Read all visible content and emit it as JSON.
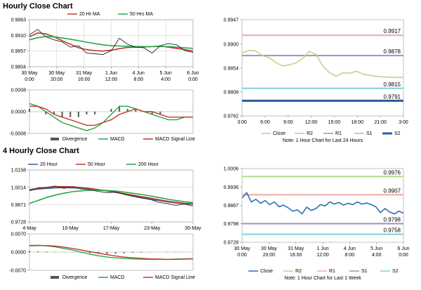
{
  "sections": {
    "hourly_title": "Hourly Close Chart",
    "four_hourly_title": "4 Hourly Close Chart"
  },
  "chart_data": [
    {
      "id": "hourly-price",
      "type": "line",
      "title": "",
      "legend": [
        "20 Hr MA",
        "50 Hrs MA"
      ],
      "legend_placement": "top",
      "x_tick_labels": [
        "30 May\n0:00",
        "30 May\n20:00",
        "31 May\n16:00",
        "1 Jun\n12:00",
        "4 Jun\n8:00",
        "5 Jun\n4:00",
        "6 Jun\n0:00"
      ],
      "y_ticks": [
        "0.9963",
        "0.9910",
        "0.9857",
        "0.9804"
      ],
      "ylim": [
        0.9804,
        0.9963
      ],
      "grid": true,
      "series": [
        {
          "name": "20 Hr MA",
          "color": "#c0392b",
          "values": [
            0.9905,
            0.9918,
            0.9915,
            0.9905,
            0.9892,
            0.988,
            0.9868,
            0.9862,
            0.9858,
            0.9857,
            0.986,
            0.9865,
            0.9869,
            0.987,
            0.9871,
            0.9872,
            0.9874,
            0.987,
            0.9866,
            0.9862,
            0.9857
          ]
        },
        {
          "name": "50 Hrs MA",
          "color": "#22a84a",
          "values": [
            0.9895,
            0.9902,
            0.9906,
            0.9905,
            0.9901,
            0.9897,
            0.9892,
            0.9887,
            0.9882,
            0.9878,
            0.9875,
            0.9874,
            0.9873,
            0.9872,
            0.9872,
            0.9872,
            0.9872,
            0.9872,
            0.987,
            0.9868,
            0.9866
          ]
        },
        {
          "name": "Close",
          "color": "#222222",
          "values": [
            0.9912,
            0.993,
            0.9905,
            0.9895,
            0.9888,
            0.987,
            0.9875,
            0.985,
            0.9848,
            0.9845,
            0.9858,
            0.99,
            0.988,
            0.987,
            0.9868,
            0.985,
            0.9875,
            0.9882,
            0.9878,
            0.9858,
            0.9853
          ]
        }
      ]
    },
    {
      "id": "hourly-macd",
      "type": "line",
      "title": "",
      "legend": [
        "Divergence",
        "MACD",
        "MACD Signal Line"
      ],
      "legend_placement": "bottom",
      "y_ticks": [
        "0.0008",
        "0.0000",
        "-0.0008"
      ],
      "ylim": [
        -0.0008,
        0.0008
      ],
      "series": [
        {
          "name": "Divergence",
          "color": "#555555",
          "values": [
            0.0001,
            0.0,
            -0.0001,
            -0.0001,
            -0.0002,
            -0.0002,
            -0.0002,
            -0.0001,
            -0.0001,
            0.0,
            0.0001,
            0.0002,
            0.0001,
            0.0001,
            0.0,
            -0.0001,
            -0.0001,
            0.0,
            0.0,
            0.0,
            0.0
          ]
        },
        {
          "name": "MACD",
          "color": "#22a84a",
          "values": [
            0.0003,
            0.0002,
            0.0,
            -0.0002,
            -0.0004,
            -0.0005,
            -0.0006,
            -0.0007,
            -0.0006,
            -0.0004,
            -0.0001,
            0.0002,
            0.0002,
            0.0001,
            0.0,
            -0.0001,
            -0.0002,
            -0.0003,
            -0.0003,
            -0.0002,
            -0.0002
          ]
        },
        {
          "name": "MACD Signal Line",
          "color": "#c0392b",
          "values": [
            0.0002,
            0.0002,
            0.0001,
            -0.0001,
            -0.0002,
            -0.0003,
            -0.0004,
            -0.0005,
            -0.0005,
            -0.0004,
            -0.0003,
            -0.0001,
            0.0,
            0.0001,
            0.0,
            0.0,
            -0.0001,
            -0.0002,
            -0.0002,
            -0.0002,
            -0.0002
          ]
        }
      ]
    },
    {
      "id": "hourly-levels",
      "type": "line",
      "title": "",
      "legend": [
        "Close",
        "R2",
        "R1",
        "S1",
        "S2"
      ],
      "legend_placement": "bottom",
      "note": "Note: 1 Hour Chart for Last 24 Hours",
      "x_tick_labels": [
        "3:00",
        "6:00",
        "9:00",
        "12:00",
        "15:00",
        "18:00",
        "21:00",
        "3:00"
      ],
      "y_ticks": [
        "0.9947",
        "0.9900",
        "0.9854",
        "0.9808",
        "0.9762"
      ],
      "ylim": [
        0.9762,
        0.9947
      ],
      "levels": [
        {
          "name": "R2",
          "value": 0.9917,
          "label": "0.9917",
          "color": "#f0a8a8"
        },
        {
          "name": "R1",
          "value": 0.9878,
          "label": "0.9878",
          "color": "#a58cc4"
        },
        {
          "name": "S1",
          "value": 0.9815,
          "label": "0.9815",
          "color": "#7fd0d8"
        },
        {
          "name": "S2",
          "value": 0.9791,
          "label": "0.9791",
          "color": "#2e5e9e"
        }
      ],
      "series": [
        {
          "name": "Close",
          "color": "#b5d98b",
          "values": [
            0.9883,
            0.9888,
            0.9887,
            0.9878,
            0.9874,
            0.9865,
            0.9858,
            0.986,
            0.9864,
            0.9872,
            0.9886,
            0.988,
            0.9858,
            0.9845,
            0.9838,
            0.9845,
            0.9844,
            0.9848,
            0.9842,
            0.984,
            0.9838,
            0.9837,
            0.9836,
            0.9836,
            0.9836
          ]
        }
      ]
    },
    {
      "id": "four-hourly-price",
      "type": "line",
      "title": "",
      "legend": [
        "20 Hour",
        "50 Hour",
        "200 Hour"
      ],
      "legend_placement": "top",
      "x_tick_labels": [
        "4-May",
        "10-May",
        "17-May",
        "23-May",
        "30-May"
      ],
      "y_ticks": [
        "1.0158",
        "1.0014",
        "0.9871",
        "0.9728"
      ],
      "ylim": [
        0.9728,
        1.0158
      ],
      "series": [
        {
          "name": "20 Hour",
          "color": "#2e5e9e",
          "values": [
            0.999,
            1.0,
            1.0005,
            1.001,
            1.0012,
            1.001,
            1.0008,
            1.0003,
            0.9995,
            0.9985,
            0.9972,
            0.996,
            0.9945,
            0.993,
            0.9915,
            0.9905,
            0.9895,
            0.9885,
            0.9878,
            0.9875
          ]
        },
        {
          "name": "50 Hour",
          "color": "#c0392b",
          "values": [
            0.9995,
            1.0005,
            1.0012,
            1.0018,
            1.002,
            1.0018,
            1.0012,
            1.0005,
            0.9995,
            0.9985,
            0.9975,
            0.9962,
            0.995,
            0.9937,
            0.9925,
            0.9912,
            0.99,
            0.989,
            0.9882,
            0.9878
          ]
        },
        {
          "name": "200 Hour",
          "color": "#22a84a",
          "values": [
            0.988,
            0.9905,
            0.993,
            0.995,
            0.9965,
            0.9978,
            0.9985,
            0.999,
            0.999,
            0.9988,
            0.9983,
            0.9975,
            0.9965,
            0.9955,
            0.9943,
            0.993,
            0.9917,
            0.9905,
            0.9895,
            0.9887
          ]
        },
        {
          "name": "Close",
          "color": "#222222",
          "values": [
            0.9985,
            1.001,
            1.0014,
            1.0025,
            1.0005,
            1.0018,
            1.0,
            0.9995,
            0.998,
            0.997,
            0.9975,
            0.9955,
            0.994,
            0.9925,
            0.9915,
            0.989,
            0.988,
            0.9865,
            0.9875,
            0.986
          ]
        }
      ]
    },
    {
      "id": "four-hourly-macd",
      "type": "line",
      "title": "",
      "legend": [
        "Divergence",
        "MACD",
        "MACD Signal Line"
      ],
      "legend_placement": "bottom",
      "y_ticks": [
        "0.0070",
        "0.0000",
        "-0.0070"
      ],
      "ylim": [
        -0.007,
        0.007
      ],
      "series": [
        {
          "name": "Divergence",
          "color": "#555555",
          "values": [
            0.0004,
            0.0003,
            0.0002,
            0.0001,
            0.0,
            -0.0001,
            -0.0002,
            -0.0004,
            -0.0006,
            -0.0007,
            -0.0006,
            -0.0004,
            -0.0003,
            -0.0002,
            -0.0001,
            0.0,
            0.0001,
            0.0001,
            0.0,
            0.0
          ]
        },
        {
          "name": "MACD",
          "color": "#22a84a",
          "values": [
            0.0025,
            0.0026,
            0.0024,
            0.002,
            0.0014,
            0.0008,
            0.0,
            -0.0008,
            -0.0014,
            -0.0019,
            -0.0022,
            -0.0024,
            -0.0026,
            -0.0027,
            -0.0028,
            -0.0028,
            -0.0028,
            -0.0027,
            -0.0026,
            -0.0025
          ]
        },
        {
          "name": "MACD Signal Line",
          "color": "#c0392b",
          "values": [
            0.0024,
            0.0025,
            0.0025,
            0.0023,
            0.0019,
            0.0014,
            0.0008,
            0.0002,
            -0.0004,
            -0.001,
            -0.0015,
            -0.0019,
            -0.0022,
            -0.0024,
            -0.0026,
            -0.0027,
            -0.0028,
            -0.0028,
            -0.0027,
            -0.0026
          ]
        }
      ]
    },
    {
      "id": "four-hourly-levels",
      "type": "line",
      "title": "",
      "legend": [
        "Close",
        "R2",
        "R1",
        "S1",
        "S2"
      ],
      "legend_placement": "bottom",
      "note": "Note: 1 Hour Chart for Last 1 Week",
      "x_tick_labels": [
        "30 May\n0:00",
        "30 May\n20:00",
        "31 May\n16:00",
        "1 Jun\n12:00",
        "4 Jun\n8:00",
        "5 Jun\n4:00",
        "6 Jun\n0:00"
      ],
      "y_ticks": [
        "1.0006",
        "0.9936",
        "0.9867",
        "0.9798",
        "0.9728"
      ],
      "ylim": [
        0.9728,
        1.0006
      ],
      "levels": [
        {
          "name": "R2",
          "value": 0.9976,
          "label": "0.9976",
          "color": "#b5d98b"
        },
        {
          "name": "R1",
          "value": 0.9907,
          "label": "0.9907",
          "color": "#f0a8a8"
        },
        {
          "name": "S1",
          "value": 0.9798,
          "label": "0.9798",
          "color": "#a58cc4"
        },
        {
          "name": "S2",
          "value": 0.9758,
          "label": "0.9758",
          "color": "#7fd0d8"
        }
      ],
      "series": [
        {
          "name": "Close",
          "color": "#2e6fb3",
          "values": [
            0.9895,
            0.9915,
            0.988,
            0.989,
            0.9875,
            0.9885,
            0.987,
            0.988,
            0.9862,
            0.9868,
            0.9858,
            0.9845,
            0.985,
            0.9835,
            0.986,
            0.9848,
            0.9855,
            0.987,
            0.9865,
            0.988,
            0.9872,
            0.9878,
            0.9868,
            0.9875,
            0.987,
            0.988,
            0.9872,
            0.9876,
            0.987,
            0.9862,
            0.984,
            0.9855,
            0.9842,
            0.9835,
            0.9845,
            0.9838
          ]
        }
      ]
    }
  ]
}
